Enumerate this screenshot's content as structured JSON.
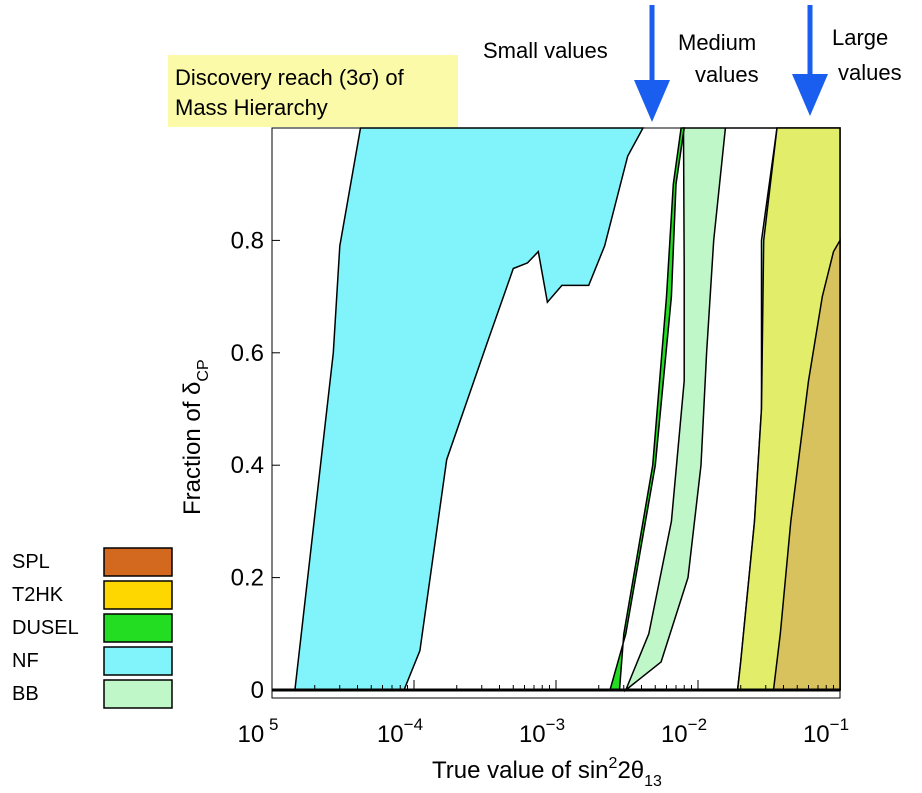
{
  "chart_data": {
    "type": "area",
    "title_lines": [
      "Discovery reach (3σ) of",
      "Mass Hierarchy"
    ],
    "xlabel": {
      "main": "True value of sin",
      "sup": "2",
      "mid": "2θ",
      "sub": "13"
    },
    "ylabel": {
      "main": "Fraction of δ",
      "sub": "CP"
    },
    "x_scale": "log",
    "xlim": [
      1e-05,
      0.1
    ],
    "ylim": [
      0,
      1
    ],
    "x_ticks": [
      {
        "value": 1e-05,
        "base": "10",
        "exp": " 5"
      },
      {
        "value": 0.0001,
        "base": "10",
        "exp": "−4"
      },
      {
        "value": 0.001,
        "base": "10",
        "exp": "−3"
      },
      {
        "value": 0.01,
        "base": "10",
        "exp": "−2"
      },
      {
        "value": 0.1,
        "base": "10",
        "exp": "−1"
      }
    ],
    "y_ticks": [
      {
        "value": 0,
        "label": "0"
      },
      {
        "value": 0.2,
        "label": "0.2"
      },
      {
        "value": 0.4,
        "label": "0.4"
      },
      {
        "value": 0.6,
        "label": "0.6"
      },
      {
        "value": 0.8,
        "label": "0.8"
      }
    ],
    "legend": [
      {
        "name": "SPL",
        "color": "#d2691e"
      },
      {
        "name": "T2HK",
        "color": "#ffd700"
      },
      {
        "name": "DUSEL",
        "color": "#22dd22"
      },
      {
        "name": "NF",
        "color": "#80f4fa"
      },
      {
        "name": "BB",
        "color": "#bff7c8"
      }
    ],
    "annotations": [
      {
        "lines": [
          "Small values"
        ],
        "arrow": false
      },
      {
        "lines": [
          "Medium",
          "values"
        ],
        "arrow": false
      },
      {
        "lines": [
          "Large",
          "values"
        ],
        "arrow": false
      }
    ],
    "arrow_color": "#1a5ef0",
    "series": [
      {
        "name": "NF",
        "color": "#80f4fa",
        "region": [
          [
            1.45e-05,
            0
          ],
          [
            2.7e-05,
            0.6
          ],
          [
            3e-05,
            0.79
          ],
          [
            4.2e-05,
            1
          ],
          [
            0.0041,
            1
          ],
          [
            0.0032,
            0.95
          ],
          [
            0.0022,
            0.79
          ],
          [
            0.0017,
            0.72
          ],
          [
            0.0011,
            0.72
          ],
          [
            0.00087,
            0.69
          ],
          [
            0.00075,
            0.78
          ],
          [
            0.00063,
            0.76
          ],
          [
            0.0005,
            0.75
          ],
          [
            0.00033,
            0.62
          ],
          [
            0.00017,
            0.41
          ],
          [
            0.00011,
            0.07
          ],
          [
            8.5e-05,
            0
          ]
        ]
      },
      {
        "name": "BB",
        "color": "#bff7c8",
        "region": [
          [
            0.0031,
            0
          ],
          [
            0.0045,
            0.1
          ],
          [
            0.0065,
            0.3
          ],
          [
            0.008,
            0.55
          ],
          [
            0.008,
            0.75
          ],
          [
            0.0079,
            1
          ],
          [
            0.1,
            1
          ],
          [
            0.1,
            0
          ],
          [
            0.019,
            0
          ],
          [
            0.02,
            0.05
          ],
          [
            0.025,
            0.3
          ],
          [
            0.028,
            0.5
          ],
          [
            0.028,
            0.8
          ],
          [
            0.036,
            1
          ],
          [
            0.0156,
            1
          ],
          [
            0.0129,
            0.8
          ],
          [
            0.0115,
            0.6
          ],
          [
            0.0105,
            0.4
          ],
          [
            0.0085,
            0.2
          ],
          [
            0.0055,
            0.05
          ]
        ]
      },
      {
        "name": "DUSEL",
        "color": "#22dd22",
        "region": [
          [
            0.0024,
            0
          ],
          [
            0.0028,
            0.06
          ],
          [
            0.0031,
            0.1
          ],
          [
            0.005,
            0.4
          ],
          [
            0.0065,
            0.7
          ],
          [
            0.007,
            0.9
          ],
          [
            0.008,
            1
          ],
          [
            0.0076,
            1
          ],
          [
            0.0067,
            0.9
          ],
          [
            0.006,
            0.7
          ],
          [
            0.0048,
            0.4
          ],
          [
            0.003,
            0.1
          ],
          [
            0.0028,
            0
          ]
        ]
      },
      {
        "name": "T2HK",
        "color": "#e2ee6a",
        "region": [
          [
            0.019,
            0
          ],
          [
            0.02,
            0.05
          ],
          [
            0.025,
            0.3
          ],
          [
            0.028,
            0.5
          ],
          [
            0.029,
            0.8
          ],
          [
            0.036,
            1
          ],
          [
            0.1,
            1
          ],
          [
            0.1,
            0
          ]
        ]
      },
      {
        "name": "SPL",
        "color": "#d7c25e",
        "region": [
          [
            0.034,
            0
          ],
          [
            0.038,
            0.1
          ],
          [
            0.045,
            0.3
          ],
          [
            0.06,
            0.55
          ],
          [
            0.075,
            0.7
          ],
          [
            0.09,
            0.78
          ],
          [
            0.1,
            0.8
          ],
          [
            0.1,
            0
          ]
        ]
      }
    ]
  }
}
